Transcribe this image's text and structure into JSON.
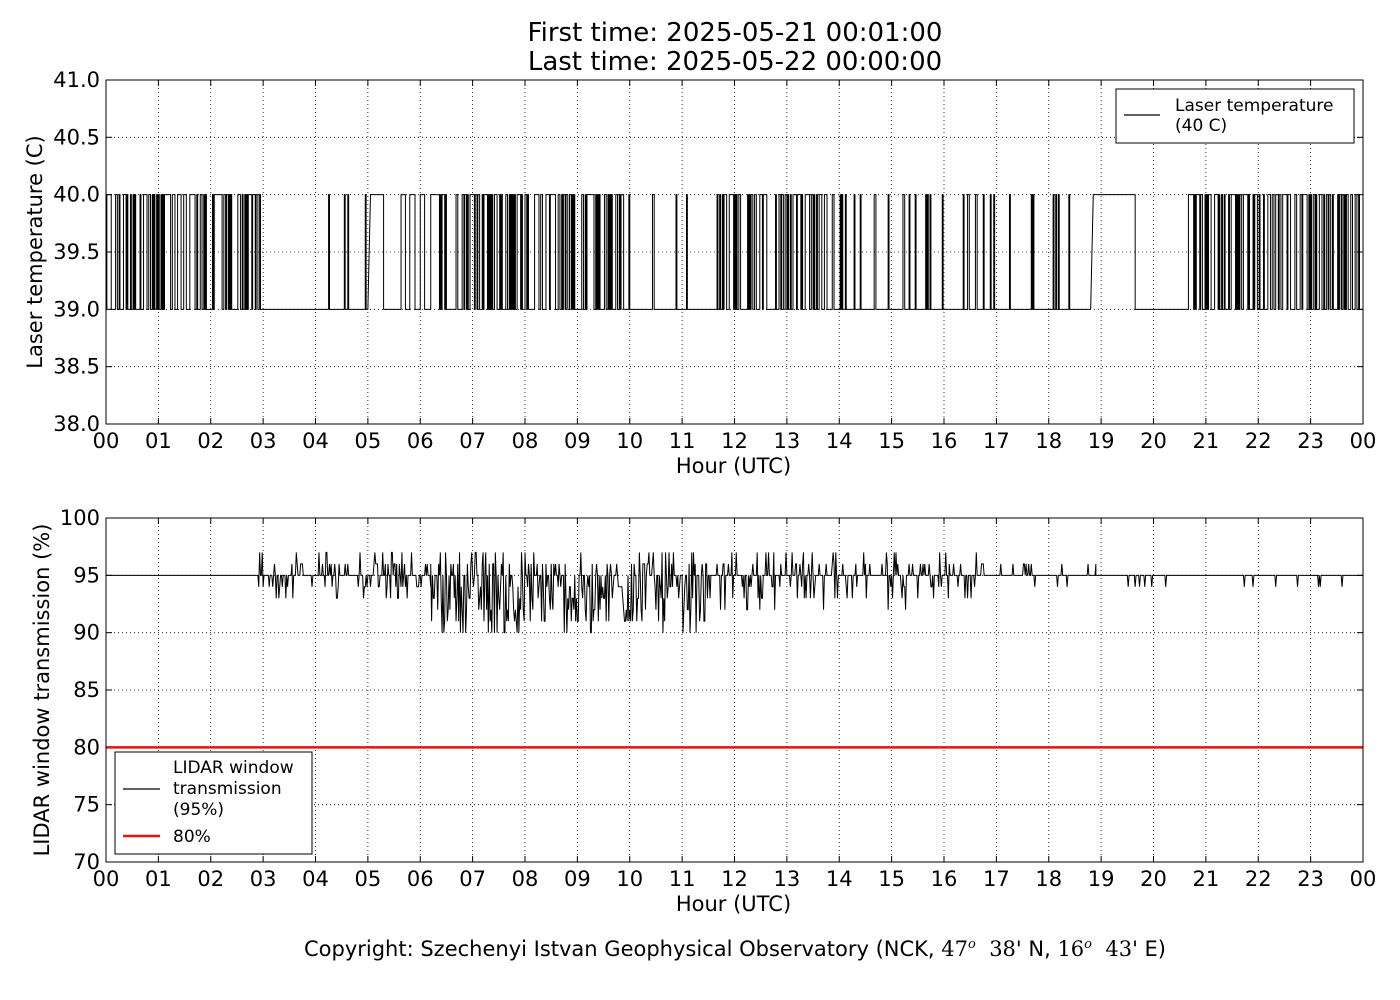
{
  "header": {
    "title_line1": "First time: 2025-05-21 00:01:00",
    "title_line2": "Last time: 2025-05-22 00:00:00"
  },
  "footer": {
    "text_prefix": "Copyright: Szechenyi Istvan Geophysical Observatory (NCK, ",
    "lat_deg": "47",
    "lat_deg_sup": "o",
    "lat_min": "38",
    "lat_suffix": "' N, ",
    "lon_deg": "16",
    "lon_deg_sup": "o",
    "lon_min": "43",
    "lon_suffix": "' E)"
  },
  "chart_data": [
    {
      "type": "line",
      "title": "",
      "xlabel": "Hour (UTC)",
      "ylabel": "Laser temperature (C)",
      "xlim": [
        0,
        24
      ],
      "ylim": [
        38.0,
        41.0
      ],
      "xticks": [
        "00",
        "01",
        "02",
        "03",
        "04",
        "05",
        "06",
        "07",
        "08",
        "09",
        "10",
        "11",
        "12",
        "13",
        "14",
        "15",
        "16",
        "17",
        "18",
        "19",
        "20",
        "21",
        "22",
        "23",
        "00"
      ],
      "yticks": [
        "38.0",
        "38.5",
        "39.0",
        "39.5",
        "40.0",
        "40.5",
        "41.0"
      ],
      "grid": true,
      "legend_position": "top-right",
      "series": [
        {
          "name": "Laser temperature\n(40 C)",
          "color": "#000000",
          "kind": "step-toggle",
          "low": 39.0,
          "high": 40.0,
          "approx_segments": [
            {
              "start_h": 0.0,
              "end_h": 2.95,
              "mode": "dense"
            },
            {
              "start_h": 2.95,
              "end_h": 3.45,
              "mode": "low"
            },
            {
              "start_h": 3.45,
              "end_h": 4.0,
              "mode": "low"
            },
            {
              "start_h": 4.0,
              "end_h": 5.0,
              "mode": "sparse"
            },
            {
              "start_h": 5.05,
              "end_h": 5.3,
              "mode": "high"
            },
            {
              "start_h": 5.3,
              "end_h": 6.2,
              "mode": "sparse-high"
            },
            {
              "start_h": 6.2,
              "end_h": 9.9,
              "mode": "dense"
            },
            {
              "start_h": 9.9,
              "end_h": 11.0,
              "mode": "sparse"
            },
            {
              "start_h": 11.0,
              "end_h": 11.7,
              "mode": "sparse"
            },
            {
              "start_h": 11.7,
              "end_h": 13.8,
              "mode": "dense"
            },
            {
              "start_h": 13.8,
              "end_h": 16.0,
              "mode": "sparse"
            },
            {
              "start_h": 16.0,
              "end_h": 18.8,
              "mode": "sparse"
            },
            {
              "start_h": 18.85,
              "end_h": 19.65,
              "mode": "high"
            },
            {
              "start_h": 19.65,
              "end_h": 20.65,
              "mode": "low"
            },
            {
              "start_h": 20.65,
              "end_h": 24.0,
              "mode": "dense"
            }
          ]
        }
      ]
    },
    {
      "type": "line",
      "title": "",
      "xlabel": "Hour (UTC)",
      "ylabel": "LIDAR window transmission (%)",
      "xlim": [
        0,
        24
      ],
      "ylim": [
        70,
        100
      ],
      "xticks": [
        "00",
        "01",
        "02",
        "03",
        "04",
        "05",
        "06",
        "07",
        "08",
        "09",
        "10",
        "11",
        "12",
        "13",
        "14",
        "15",
        "16",
        "17",
        "18",
        "19",
        "20",
        "21",
        "22",
        "23",
        "00"
      ],
      "yticks": [
        "70",
        "75",
        "80",
        "85",
        "90",
        "95",
        "100"
      ],
      "grid": true,
      "legend_position": "bottom-left",
      "series": [
        {
          "name": "LIDAR window\ntransmission\n(95%)",
          "color": "#000000",
          "kind": "noisy",
          "baseline": 95,
          "approx_segments": [
            {
              "start_h": 0.0,
              "end_h": 2.9,
              "mode": "flat"
            },
            {
              "start_h": 2.9,
              "end_h": 6.2,
              "mode": "light",
              "min": 93,
              "max": 97
            },
            {
              "start_h": 6.2,
              "end_h": 11.5,
              "mode": "heavy",
              "min": 90,
              "max": 97
            },
            {
              "start_h": 11.5,
              "end_h": 16.8,
              "mode": "light",
              "min": 92,
              "max": 97
            },
            {
              "start_h": 16.8,
              "end_h": 18.9,
              "mode": "sparse",
              "min": 94,
              "max": 96
            },
            {
              "start_h": 18.9,
              "end_h": 24.0,
              "mode": "rare",
              "min": 94,
              "max": 95
            }
          ]
        },
        {
          "name": "80%",
          "color": "#e8120c",
          "kind": "constant",
          "value": 80
        }
      ]
    }
  ]
}
